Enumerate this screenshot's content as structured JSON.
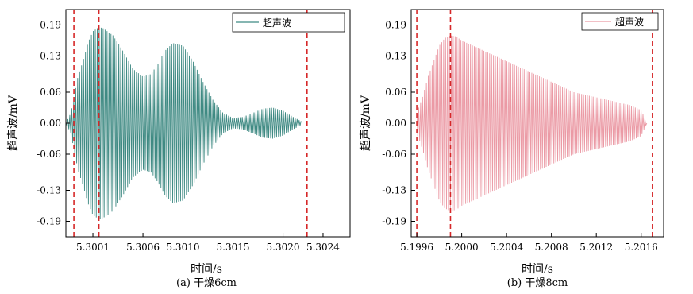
{
  "chart_data": [
    {
      "type": "line",
      "caption": "(a) 干燥6cm",
      "xlabel": "时间/s",
      "ylabel": "超声波/mV",
      "legend": "超声波",
      "legend_position": "top-right",
      "color": "#3f8a83",
      "xlim": [
        5.29983,
        5.30267
      ],
      "ylim": [
        -0.22,
        0.22
      ],
      "xticks": [
        "5.3001",
        "5.3006",
        "5.3010",
        "5.3015",
        "5.3020",
        "5.3024"
      ],
      "xtick_values": [
        5.3001,
        5.3006,
        5.301,
        5.3015,
        5.302,
        5.3024
      ],
      "yticks": [
        "0.19",
        "0.13",
        "0.06",
        "0.00",
        "-0.06",
        "-0.13",
        "-0.19"
      ],
      "ytick_values": [
        0.19,
        0.13,
        0.06,
        0.0,
        -0.06,
        -0.13,
        -0.19
      ],
      "vlines_x": [
        5.29991,
        5.30016,
        5.30224
      ],
      "vline_color": "#d62728",
      "envelope": {
        "x": [
          5.29983,
          5.29988,
          5.2999,
          5.29992,
          5.29995,
          5.3,
          5.30005,
          5.3001,
          5.30016,
          5.3002,
          5.3003,
          5.3004,
          5.3005,
          5.3006,
          5.30068,
          5.30075,
          5.30082,
          5.3009,
          5.301,
          5.3011,
          5.3012,
          5.3013,
          5.3014,
          5.3015,
          5.3016,
          5.3017,
          5.3018,
          5.3019,
          5.302,
          5.3021,
          5.30218
        ],
        "y": [
          0.0,
          0.02,
          0.04,
          0.06,
          0.09,
          0.12,
          0.155,
          0.178,
          0.186,
          0.184,
          0.17,
          0.14,
          0.105,
          0.09,
          0.095,
          0.115,
          0.14,
          0.155,
          0.15,
          0.12,
          0.08,
          0.045,
          0.02,
          0.01,
          0.012,
          0.02,
          0.028,
          0.03,
          0.024,
          0.012,
          0.004
        ]
      },
      "cycles": 120
    },
    {
      "type": "line",
      "caption": "(b) 干燥8cm",
      "xlabel": "时间/s",
      "ylabel": "超声波/mV",
      "legend": "超声波",
      "legend_position": "top-right",
      "color": "#eb9aa5",
      "xlim": [
        5.19955,
        5.2018
      ],
      "ylim": [
        -0.22,
        0.22
      ],
      "xticks": [
        "5.1996",
        "5.2000",
        "5.2004",
        "5.2008",
        "5.2012",
        "5.2016"
      ],
      "xtick_values": [
        5.1996,
        5.2,
        5.2004,
        5.2008,
        5.2012,
        5.2016
      ],
      "yticks": [
        "0.19",
        "0.13",
        "0.06",
        "0.00",
        "-0.06",
        "-0.13",
        "-0.19"
      ],
      "ytick_values": [
        0.19,
        0.13,
        0.06,
        0.0,
        -0.06,
        -0.13,
        -0.19
      ],
      "vlines_x": [
        5.1996,
        5.1999,
        5.2017
      ],
      "vline_color": "#d62728",
      "envelope": {
        "x": [
          5.1996,
          5.19965,
          5.1997,
          5.19975,
          5.1998,
          5.19985,
          5.1999,
          5.19995,
          5.2,
          5.2001,
          5.2002,
          5.2003,
          5.2004,
          5.2005,
          5.2006,
          5.2007,
          5.2008,
          5.2009,
          5.201,
          5.2011,
          5.2012,
          5.2013,
          5.2014,
          5.2015,
          5.2016,
          5.20165
        ],
        "y": [
          0.02,
          0.05,
          0.09,
          0.12,
          0.15,
          0.165,
          0.17,
          0.168,
          0.16,
          0.15,
          0.14,
          0.13,
          0.12,
          0.11,
          0.1,
          0.09,
          0.08,
          0.07,
          0.06,
          0.055,
          0.05,
          0.045,
          0.04,
          0.035,
          0.025,
          0.0
        ]
      },
      "cycles": 120
    }
  ]
}
